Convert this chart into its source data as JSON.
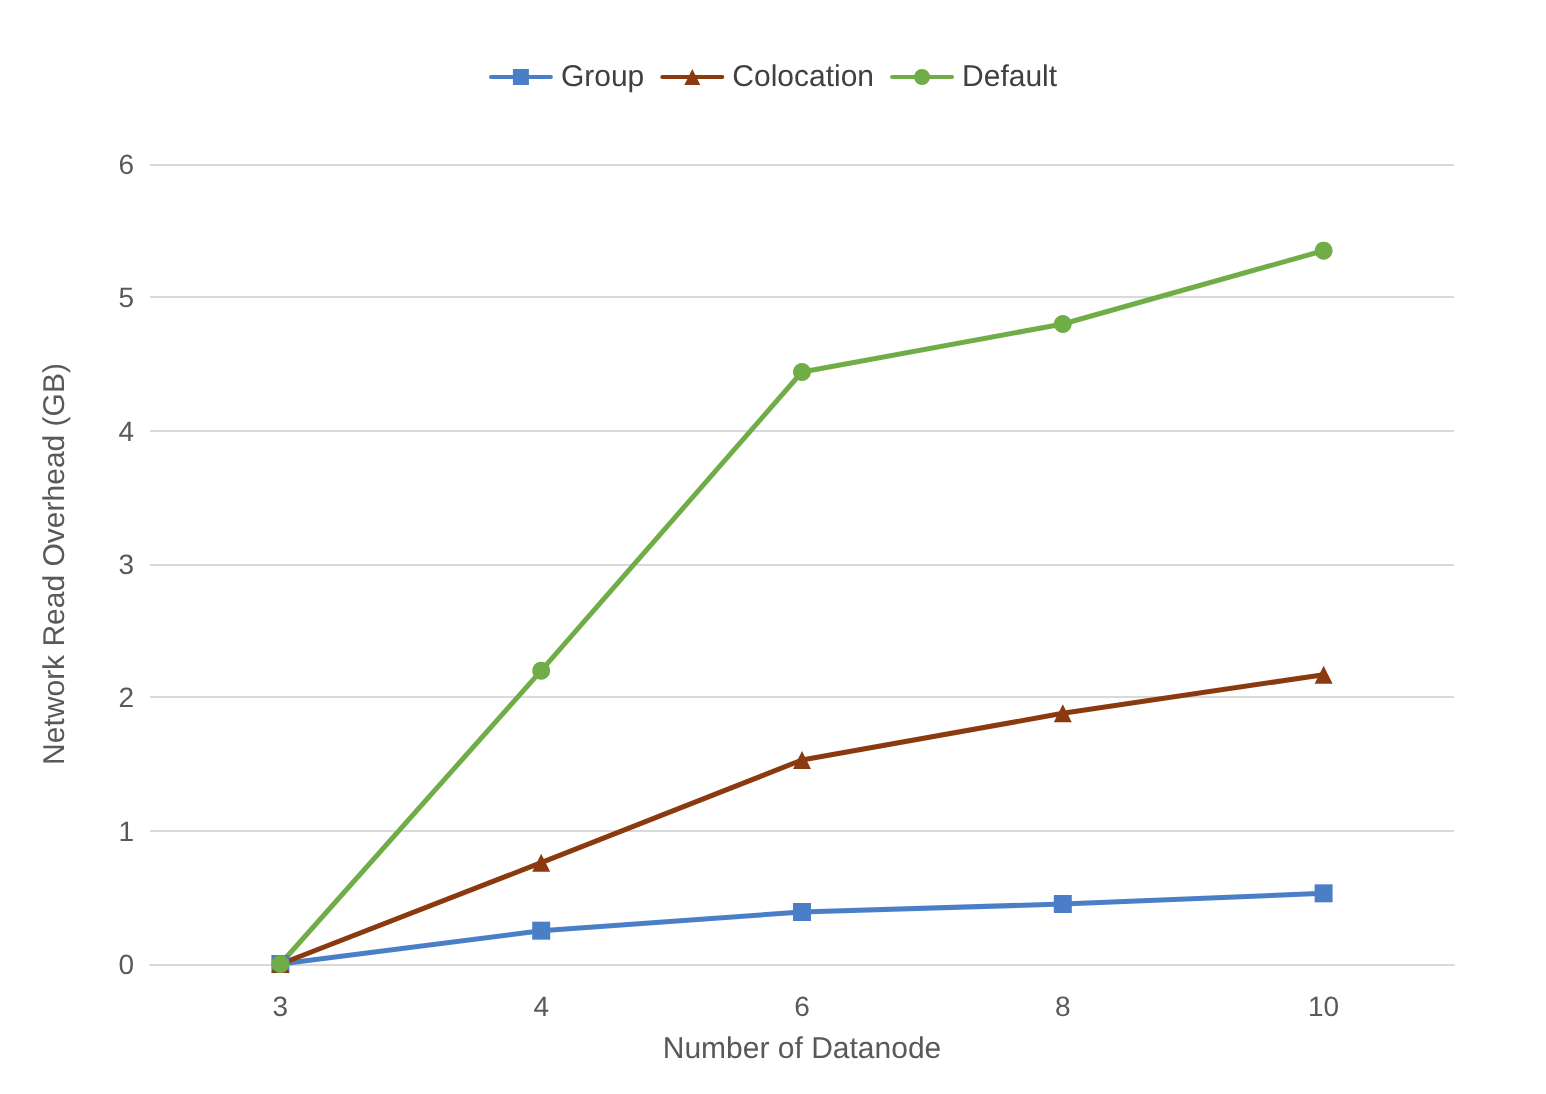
{
  "chart_data": {
    "type": "line",
    "xlabel": "Number of Datanode",
    "ylabel": "Network Read Overhead (GB)",
    "categories": [
      "3",
      "4",
      "6",
      "8",
      "10"
    ],
    "series": [
      {
        "name": "Group",
        "color": "#4a7fc8",
        "marker": "square",
        "values": [
          0,
          0.25,
          0.39,
          0.45,
          0.53
        ]
      },
      {
        "name": "Colocation",
        "color": "#8b3a0f",
        "marker": "triangle",
        "values": [
          0,
          0.76,
          1.53,
          1.88,
          2.17
        ]
      },
      {
        "name": "Default",
        "color": "#70ad47",
        "marker": "circle",
        "values": [
          0,
          2.2,
          4.44,
          4.8,
          5.35
        ]
      }
    ],
    "ylim": [
      0,
      6
    ],
    "yticks": [
      0,
      1,
      2,
      3,
      4,
      5,
      6
    ],
    "grid": "y",
    "legend": "top",
    "line_style": "solid"
  }
}
